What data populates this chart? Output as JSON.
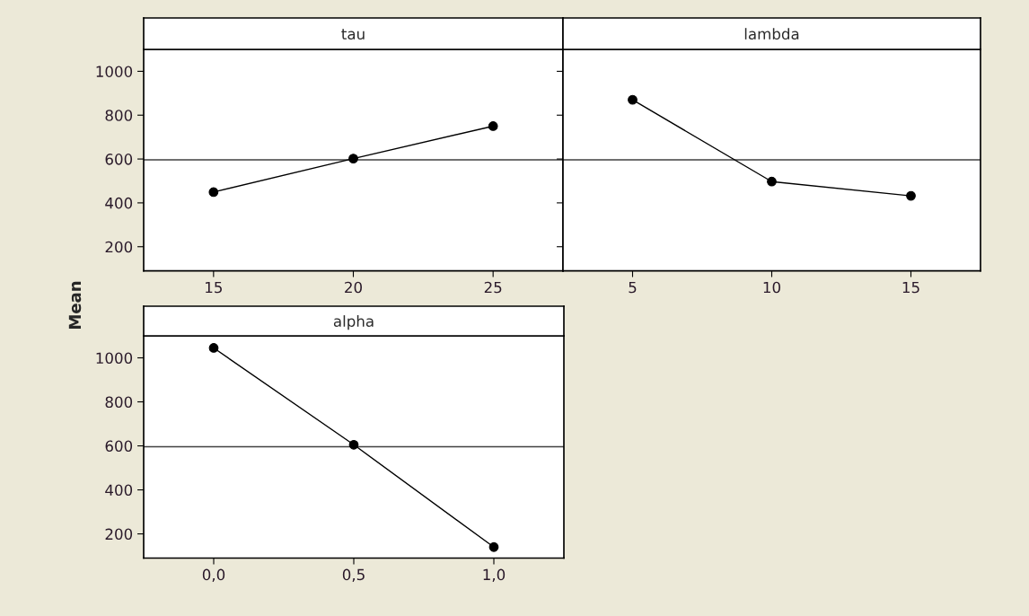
{
  "chart_data": [
    {
      "type": "line",
      "title": "tau",
      "ylabel": "Mean",
      "x": [
        15,
        20,
        25
      ],
      "series": [
        {
          "color": "#000000",
          "values": [
            449,
            602,
            750
          ]
        }
      ],
      "xlim": [
        12.5,
        27.5
      ],
      "xticks": [
        15,
        20,
        25
      ],
      "ylim": [
        90,
        1100
      ],
      "yticks": [
        200,
        400,
        600,
        800,
        1000
      ],
      "ref_lines": [
        {
          "axis": "y",
          "value": 596,
          "color": "#404040"
        }
      ],
      "marker": "circle",
      "line_style": "solid",
      "grid": false
    },
    {
      "type": "line",
      "title": "lambda",
      "x": [
        5,
        10,
        15
      ],
      "series": [
        {
          "color": "#000000",
          "values": [
            870,
            497,
            432
          ]
        }
      ],
      "xlim": [
        2.5,
        17.5
      ],
      "xticks": [
        5,
        10,
        15
      ],
      "ylim": [
        90,
        1100
      ],
      "yticks": [
        200,
        400,
        600,
        800,
        1000
      ],
      "tick_labels": "x",
      "ref_lines": [
        {
          "axis": "y",
          "value": 596,
          "color": "#404040"
        }
      ],
      "marker": "circle",
      "line_style": "solid",
      "grid": false
    },
    {
      "type": "line",
      "title": "alpha",
      "x": [
        0,
        0.5,
        1.0
      ],
      "series": [
        {
          "color": "#000000",
          "values": [
            1045,
            605,
            140
          ]
        }
      ],
      "xlim": [
        -0.25,
        1.25
      ],
      "xticks": [
        {
          "value": 0,
          "label": "0,0"
        },
        {
          "value": 0.5,
          "label": "0,5"
        },
        {
          "value": 1.0,
          "label": "1,0"
        }
      ],
      "ylim": [
        90,
        1100
      ],
      "yticks": [
        200,
        400,
        600,
        800,
        1000
      ],
      "ref_lines": [
        {
          "axis": "y",
          "value": 596,
          "color": "#404040"
        }
      ],
      "marker": "circle",
      "line_style": "solid",
      "grid": false
    }
  ]
}
